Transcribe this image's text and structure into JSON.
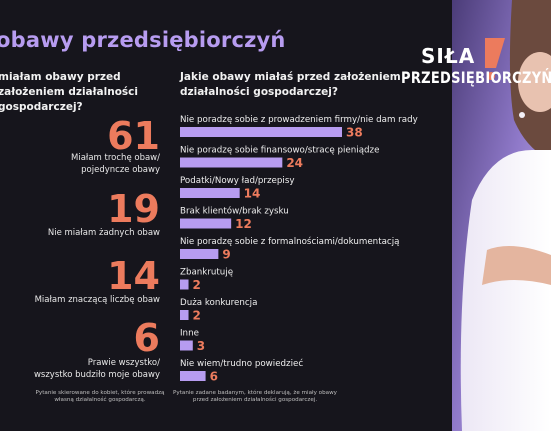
{
  "header": {
    "title": "obawy przedsiębiorczyń"
  },
  "left_panel": {
    "question": "miałam obawy przed założeniem działalności gospodarczej?",
    "stats": [
      {
        "value": "61",
        "label": "Miałam trochę obaw/\npojedyncze obawy"
      },
      {
        "value": "19",
        "label": "Nie miałam żadnych obaw"
      },
      {
        "value": "14",
        "label": "Miałam znaczącą liczbę obaw"
      },
      {
        "value": "6",
        "label": "Prawie wszystko/\nwszystko budziło moje obawy"
      }
    ],
    "footnote": "Pytanie skierowane do kobiet, które prowadzą\nwłasną działalność gospodarczą."
  },
  "right_panel": {
    "question": "Jakie obawy miałaś przed założeniem działalności gospodarczej?",
    "footnote": "Pytanie zadane badanym, które deklarują, że miały obawy\nprzed założeniem działalności gospodarczej."
  },
  "logo": {
    "line1": "SIŁA",
    "line2": "PRZEDSIĘBIORCZYŃ"
  },
  "colors": {
    "background": "#16151c",
    "accent_purple": "#b79cf0",
    "accent_orange": "#ec7b5d",
    "bar": "#b79cf0"
  },
  "chart_data": {
    "type": "bar",
    "orientation": "horizontal",
    "title": "Jakie obawy miałaś przed założeniem działalności gospodarczej?",
    "categories": [
      "Nie poradzę sobie z prowadzeniem firmy/nie dam rady",
      "Nie poradzę sobie finansowo/stracę pieniądze",
      "Podatki/Nowy ład/przepisy",
      "Brak klientów/brak zysku",
      "Nie poradzę sobie z formalnościami/dokumentacją",
      "Zbankrutuję",
      "Duża konkurencja",
      "Inne",
      "Nie wiem/trudno powiedzieć"
    ],
    "values": [
      38,
      24,
      14,
      12,
      9,
      2,
      2,
      3,
      6
    ],
    "data_labels": [
      "38",
      "24",
      "14",
      "12",
      "9",
      "2",
      "2",
      "3",
      "6"
    ]
  }
}
